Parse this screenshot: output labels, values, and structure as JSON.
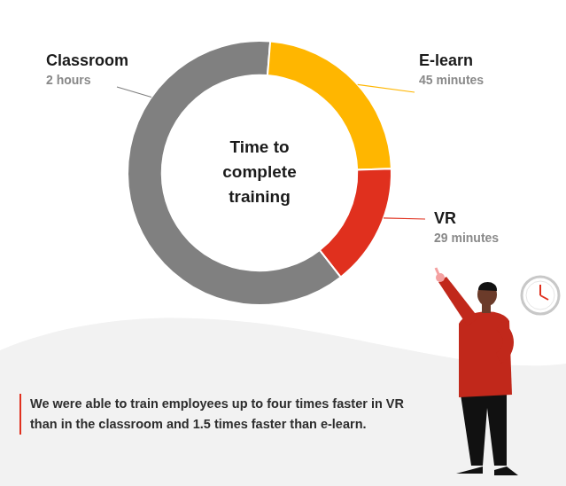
{
  "chart_data": {
    "type": "doughnut",
    "title": "Time to complete training",
    "categories": [
      "Classroom",
      "E-learn",
      "VR"
    ],
    "values": [
      120,
      45,
      29
    ],
    "value_labels": [
      "2 hours",
      "45 minutes",
      "29 minutes"
    ],
    "colors": [
      "#808080",
      "#ffb600",
      "#e0301e"
    ],
    "data_labels": true,
    "annotation": [
      "We were able to train employees up to four times faster in VR",
      "than in the classroom and 1.5 times faster than e-learn."
    ]
  }
}
